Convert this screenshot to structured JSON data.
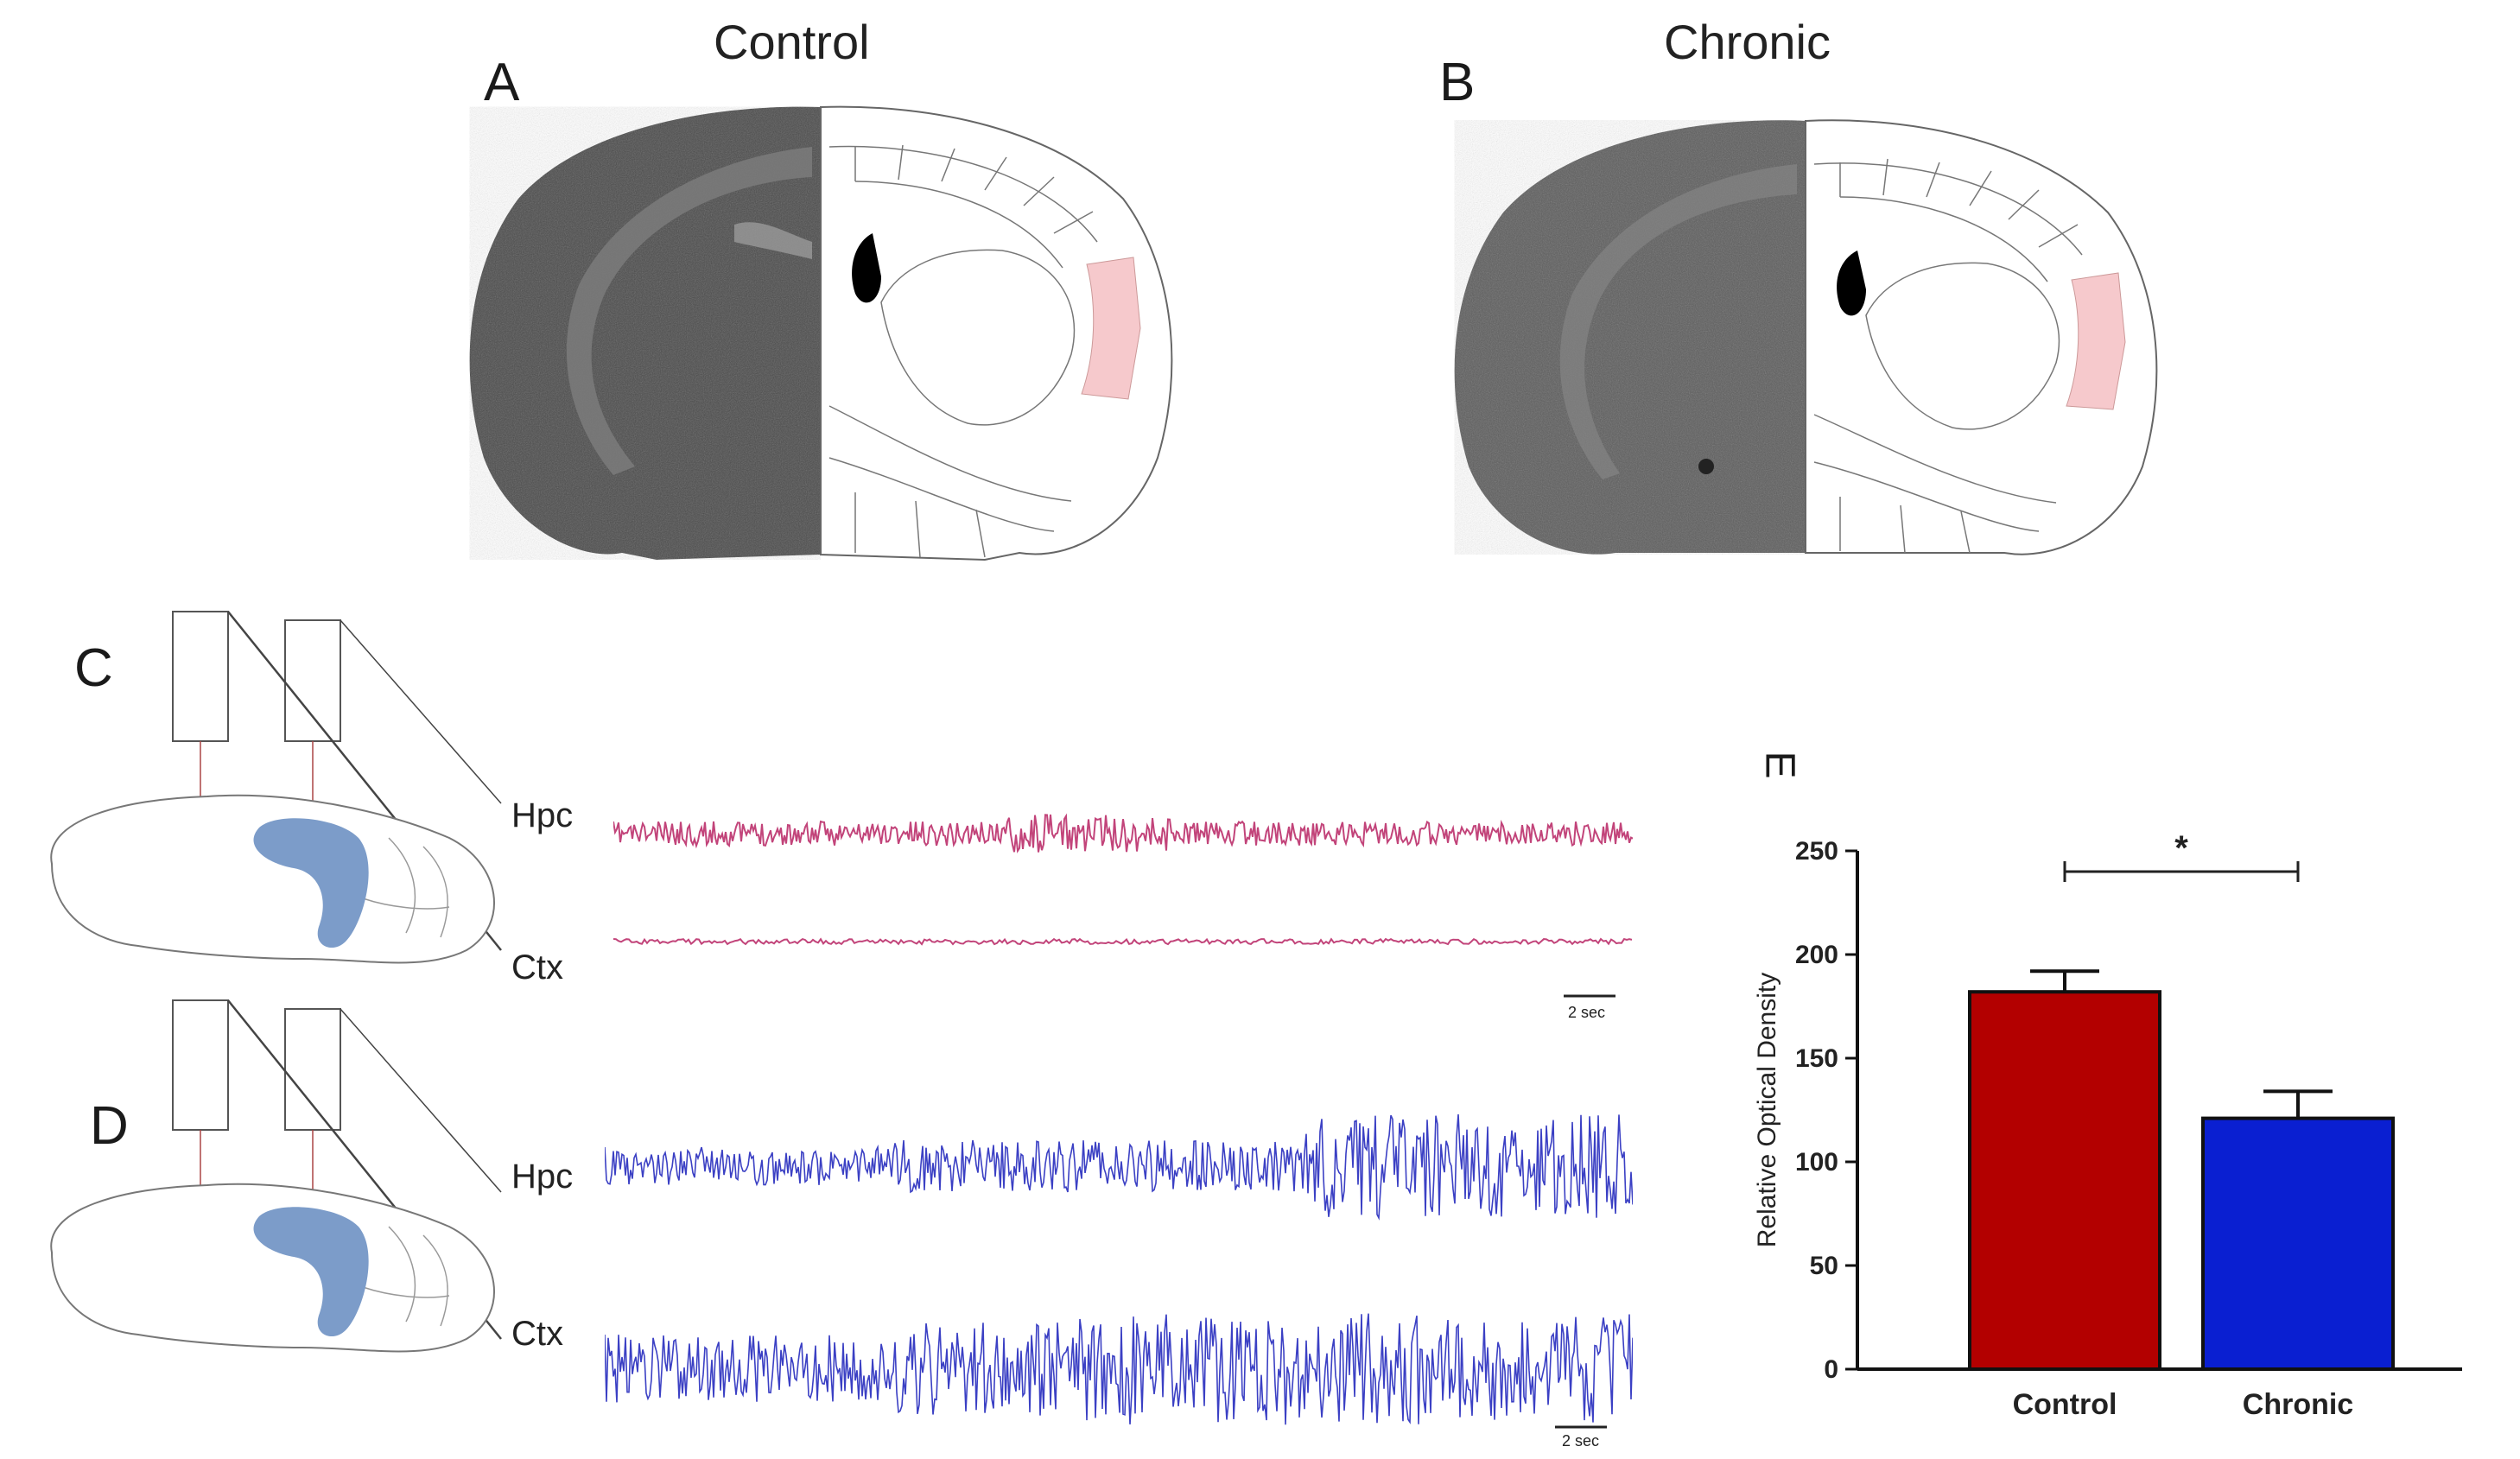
{
  "panels": {
    "A": {
      "letter": "A",
      "title": "Control"
    },
    "B": {
      "letter": "B",
      "title": "Chronic"
    },
    "C": {
      "letter": "C",
      "labels": [
        "Hpc",
        "Ctx"
      ],
      "scale": "2 sec",
      "trace_color": "#c2447a"
    },
    "D": {
      "letter": "D",
      "labels": [
        "Hpc",
        "Ctx"
      ],
      "scale": "2 sec",
      "trace_color": "#3b40c4"
    },
    "E": {
      "letter": "E"
    }
  },
  "colors": {
    "roi": "#f6c9cc",
    "hippocampus": "#7c9cc9",
    "control_bar": "#b30000",
    "chronic_bar": "#0a1fd1"
  },
  "chart_data": {
    "type": "bar",
    "categories": [
      "Control",
      "Chronic"
    ],
    "values": [
      182,
      121
    ],
    "errors": [
      10,
      13
    ],
    "ylabel": "Relative Optical Density",
    "ylim": [
      0,
      250
    ],
    "yticks": [
      0,
      50,
      100,
      150,
      200,
      250
    ],
    "significance": "*",
    "grid": false
  }
}
